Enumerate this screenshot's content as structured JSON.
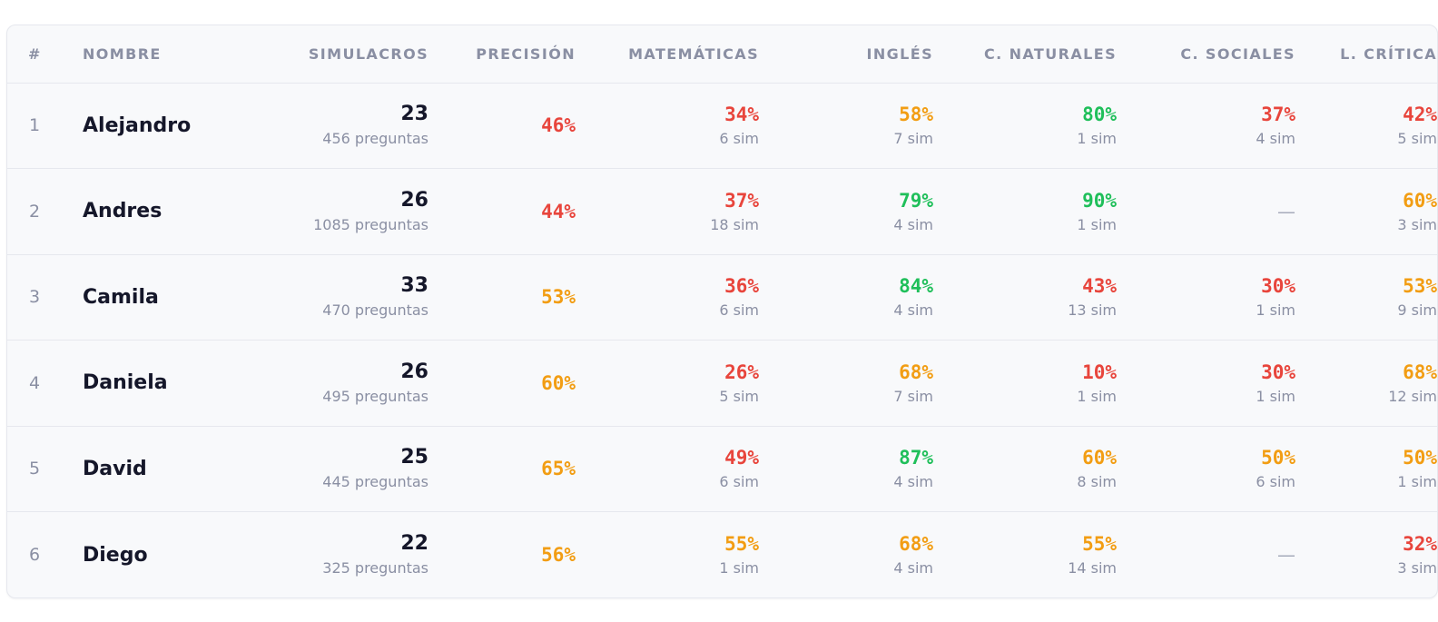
{
  "colors": {
    "red": "#e8453c",
    "orange": "#f29d13",
    "green": "#1fbf5a"
  },
  "headers": [
    "#",
    "NOMBRE",
    "SIMULACROS",
    "PRECISIÓN",
    "MATEMÁTICAS",
    "INGLÉS",
    "C. NATURALES",
    "C. SOCIALES",
    "L. CRÍTICA"
  ],
  "rows": [
    {
      "idx": "1",
      "name": "Alejandro",
      "sims": "23",
      "questions": "456 preguntas",
      "precision": "46%",
      "precision_color": "red",
      "subjects": [
        {
          "pct": "34%",
          "sim": "6 sim",
          "color": "red"
        },
        {
          "pct": "58%",
          "sim": "7 sim",
          "color": "orange"
        },
        {
          "pct": "80%",
          "sim": "1 sim",
          "color": "green"
        },
        {
          "pct": "37%",
          "sim": "4 sim",
          "color": "red"
        },
        {
          "pct": "42%",
          "sim": "5 sim",
          "color": "red"
        }
      ]
    },
    {
      "idx": "2",
      "name": "Andres",
      "sims": "26",
      "questions": "1085 preguntas",
      "precision": "44%",
      "precision_color": "red",
      "subjects": [
        {
          "pct": "37%",
          "sim": "18 sim",
          "color": "red"
        },
        {
          "pct": "79%",
          "sim": "4 sim",
          "color": "green"
        },
        {
          "pct": "90%",
          "sim": "1 sim",
          "color": "green"
        },
        {
          "dash": "—"
        },
        {
          "pct": "60%",
          "sim": "3 sim",
          "color": "orange"
        }
      ]
    },
    {
      "idx": "3",
      "name": "Camila",
      "sims": "33",
      "questions": "470 preguntas",
      "precision": "53%",
      "precision_color": "orange",
      "subjects": [
        {
          "pct": "36%",
          "sim": "6 sim",
          "color": "red"
        },
        {
          "pct": "84%",
          "sim": "4 sim",
          "color": "green"
        },
        {
          "pct": "43%",
          "sim": "13 sim",
          "color": "red"
        },
        {
          "pct": "30%",
          "sim": "1 sim",
          "color": "red"
        },
        {
          "pct": "53%",
          "sim": "9 sim",
          "color": "orange"
        }
      ]
    },
    {
      "idx": "4",
      "name": "Daniela",
      "sims": "26",
      "questions": "495 preguntas",
      "precision": "60%",
      "precision_color": "orange",
      "subjects": [
        {
          "pct": "26%",
          "sim": "5 sim",
          "color": "red"
        },
        {
          "pct": "68%",
          "sim": "7 sim",
          "color": "orange"
        },
        {
          "pct": "10%",
          "sim": "1 sim",
          "color": "red"
        },
        {
          "pct": "30%",
          "sim": "1 sim",
          "color": "red"
        },
        {
          "pct": "68%",
          "sim": "12 sim",
          "color": "orange"
        }
      ]
    },
    {
      "idx": "5",
      "name": "David",
      "sims": "25",
      "questions": "445 preguntas",
      "precision": "65%",
      "precision_color": "orange",
      "subjects": [
        {
          "pct": "49%",
          "sim": "6 sim",
          "color": "red"
        },
        {
          "pct": "87%",
          "sim": "4 sim",
          "color": "green"
        },
        {
          "pct": "60%",
          "sim": "8 sim",
          "color": "orange"
        },
        {
          "pct": "50%",
          "sim": "6 sim",
          "color": "orange"
        },
        {
          "pct": "50%",
          "sim": "1 sim",
          "color": "orange"
        }
      ]
    },
    {
      "idx": "6",
      "name": "Diego",
      "sims": "22",
      "questions": "325 preguntas",
      "precision": "56%",
      "precision_color": "orange",
      "subjects": [
        {
          "pct": "55%",
          "sim": "1 sim",
          "color": "orange"
        },
        {
          "pct": "68%",
          "sim": "4 sim",
          "color": "orange"
        },
        {
          "pct": "55%",
          "sim": "14 sim",
          "color": "orange"
        },
        {
          "dash": "—"
        },
        {
          "pct": "32%",
          "sim": "3 sim",
          "color": "red"
        }
      ]
    }
  ]
}
